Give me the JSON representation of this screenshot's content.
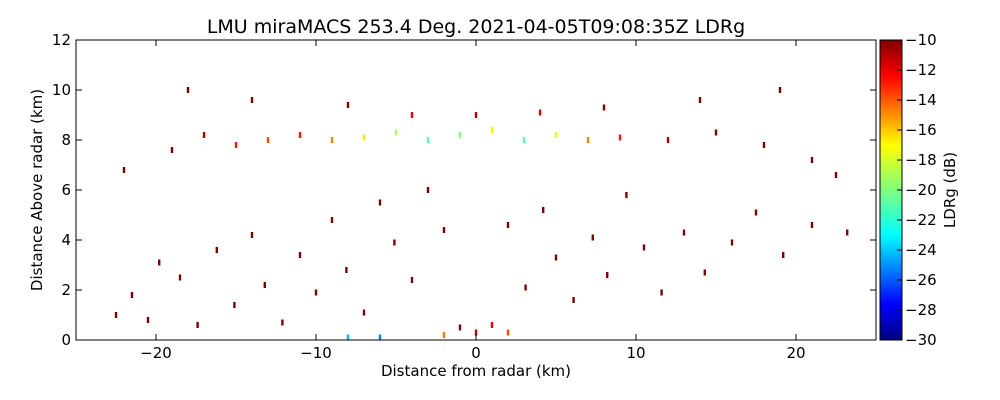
{
  "chart_data": {
    "type": "scatter",
    "title": "LMU miraMACS 253.4 Deg. 2021-04-05T09:08:35Z  LDRg",
    "xlabel": "Distance from radar (km)",
    "ylabel": "Distance Above radar  (km)",
    "xlim": [
      -25,
      25
    ],
    "ylim": [
      0,
      12
    ],
    "xticks": [
      -20,
      -10,
      0,
      10,
      20
    ],
    "yticks": [
      0,
      2,
      4,
      6,
      8,
      10,
      12
    ],
    "xtick_labels": [
      "−20",
      "−10",
      "0",
      "10",
      "20"
    ],
    "ytick_labels": [
      "0",
      "2",
      "4",
      "6",
      "8",
      "10",
      "12"
    ],
    "grid": false,
    "colorbar": {
      "label": "LDRg (dB)",
      "range": [
        -30,
        -10
      ],
      "ticks": [
        -10,
        -12,
        -14,
        -16,
        -18,
        -20,
        -22,
        -24,
        -26,
        -28,
        -30
      ],
      "tick_labels": [
        "−10",
        "−12",
        "−14",
        "−16",
        "−18",
        "−20",
        "−22",
        "−24",
        "−26",
        "−28",
        "−30"
      ],
      "colormap": "jet"
    },
    "features": [
      {
        "name": "sparse-echoes",
        "desc": "scattered weak returns, LDR near -10 dB"
      },
      {
        "name": "cloud-layer",
        "desc": "layer near 7.5-8.8 km altitude, LDR -14 to -22 dB in center"
      },
      {
        "name": "near-ground-clutter",
        "desc": "dense returns below 1 km near radar"
      }
    ],
    "points": [
      {
        "x": -22.5,
        "y": 1.0,
        "v": -10
      },
      {
        "x": -21.5,
        "y": 1.8,
        "v": -10
      },
      {
        "x": -20.5,
        "y": 0.8,
        "v": -10
      },
      {
        "x": -19.8,
        "y": 3.1,
        "v": -10
      },
      {
        "x": -18.5,
        "y": 2.5,
        "v": -10
      },
      {
        "x": -17.4,
        "y": 0.6,
        "v": -10
      },
      {
        "x": -16.2,
        "y": 3.6,
        "v": -10
      },
      {
        "x": -15.1,
        "y": 1.4,
        "v": -10
      },
      {
        "x": -14.0,
        "y": 4.2,
        "v": -10
      },
      {
        "x": -13.2,
        "y": 2.2,
        "v": -10
      },
      {
        "x": -12.1,
        "y": 0.7,
        "v": -10
      },
      {
        "x": -11.0,
        "y": 3.4,
        "v": -10
      },
      {
        "x": -10.0,
        "y": 1.9,
        "v": -10
      },
      {
        "x": -9.0,
        "y": 4.8,
        "v": -10
      },
      {
        "x": -8.1,
        "y": 2.8,
        "v": -10
      },
      {
        "x": -7.0,
        "y": 1.1,
        "v": -10
      },
      {
        "x": -6.0,
        "y": 5.5,
        "v": -10
      },
      {
        "x": -5.1,
        "y": 3.9,
        "v": -10
      },
      {
        "x": -4.0,
        "y": 2.4,
        "v": -10
      },
      {
        "x": -3.0,
        "y": 6.0,
        "v": -10
      },
      {
        "x": -2.0,
        "y": 4.4,
        "v": -10
      },
      {
        "x": 2.0,
        "y": 4.6,
        "v": -10
      },
      {
        "x": 3.1,
        "y": 2.1,
        "v": -10
      },
      {
        "x": 4.2,
        "y": 5.2,
        "v": -10
      },
      {
        "x": 5.0,
        "y": 3.3,
        "v": -10
      },
      {
        "x": 6.1,
        "y": 1.6,
        "v": -10
      },
      {
        "x": 7.3,
        "y": 4.1,
        "v": -10
      },
      {
        "x": 8.2,
        "y": 2.6,
        "v": -10
      },
      {
        "x": 9.4,
        "y": 5.8,
        "v": -10
      },
      {
        "x": 10.5,
        "y": 3.7,
        "v": -10
      },
      {
        "x": 11.6,
        "y": 1.9,
        "v": -10
      },
      {
        "x": 13.0,
        "y": 4.3,
        "v": -10
      },
      {
        "x": 14.3,
        "y": 2.7,
        "v": -10
      },
      {
        "x": 16.0,
        "y": 3.9,
        "v": -10
      },
      {
        "x": 17.5,
        "y": 5.1,
        "v": -10
      },
      {
        "x": 19.2,
        "y": 3.4,
        "v": -10
      },
      {
        "x": 21.0,
        "y": 4.6,
        "v": -10
      },
      {
        "x": 22.5,
        "y": 6.6,
        "v": -10
      },
      {
        "x": 23.2,
        "y": 4.3,
        "v": -10
      },
      {
        "x": -22.0,
        "y": 6.8,
        "v": -10
      },
      {
        "x": -19.0,
        "y": 7.6,
        "v": -10
      },
      {
        "x": -17.0,
        "y": 8.2,
        "v": -11
      },
      {
        "x": -15.0,
        "y": 7.8,
        "v": -13
      },
      {
        "x": -13.0,
        "y": 8.0,
        "v": -14
      },
      {
        "x": -11.0,
        "y": 8.2,
        "v": -13
      },
      {
        "x": -9.0,
        "y": 8.0,
        "v": -15
      },
      {
        "x": -7.0,
        "y": 8.1,
        "v": -17
      },
      {
        "x": -5.0,
        "y": 8.3,
        "v": -19
      },
      {
        "x": -3.0,
        "y": 8.0,
        "v": -21
      },
      {
        "x": -1.0,
        "y": 8.2,
        "v": -20
      },
      {
        "x": 1.0,
        "y": 8.4,
        "v": -18
      },
      {
        "x": 3.0,
        "y": 8.0,
        "v": -21
      },
      {
        "x": 5.0,
        "y": 8.2,
        "v": -18
      },
      {
        "x": 7.0,
        "y": 8.0,
        "v": -15
      },
      {
        "x": 9.0,
        "y": 8.1,
        "v": -13
      },
      {
        "x": 12.0,
        "y": 8.0,
        "v": -11
      },
      {
        "x": 15.0,
        "y": 8.3,
        "v": -10
      },
      {
        "x": 18.0,
        "y": 7.8,
        "v": -10
      },
      {
        "x": 21.0,
        "y": 7.2,
        "v": -10
      },
      {
        "x": -18.0,
        "y": 10.0,
        "v": -10
      },
      {
        "x": -14.0,
        "y": 9.6,
        "v": -10
      },
      {
        "x": -8.0,
        "y": 9.4,
        "v": -10
      },
      {
        "x": -4.0,
        "y": 9.0,
        "v": -12
      },
      {
        "x": 0.0,
        "y": 9.0,
        "v": -11
      },
      {
        "x": 4.0,
        "y": 9.1,
        "v": -12
      },
      {
        "x": 8.0,
        "y": 9.3,
        "v": -10
      },
      {
        "x": 14.0,
        "y": 9.6,
        "v": -10
      },
      {
        "x": 19.0,
        "y": 10.0,
        "v": -10
      },
      {
        "x": -1.0,
        "y": 0.5,
        "v": -10
      },
      {
        "x": 0.0,
        "y": 0.3,
        "v": -11
      },
      {
        "x": 1.0,
        "y": 0.6,
        "v": -12
      },
      {
        "x": -2.0,
        "y": 0.2,
        "v": -15
      },
      {
        "x": 2.0,
        "y": 0.3,
        "v": -14
      },
      {
        "x": -8.0,
        "y": 0.1,
        "v": -24
      },
      {
        "x": -6.0,
        "y": 0.1,
        "v": -25
      }
    ]
  }
}
